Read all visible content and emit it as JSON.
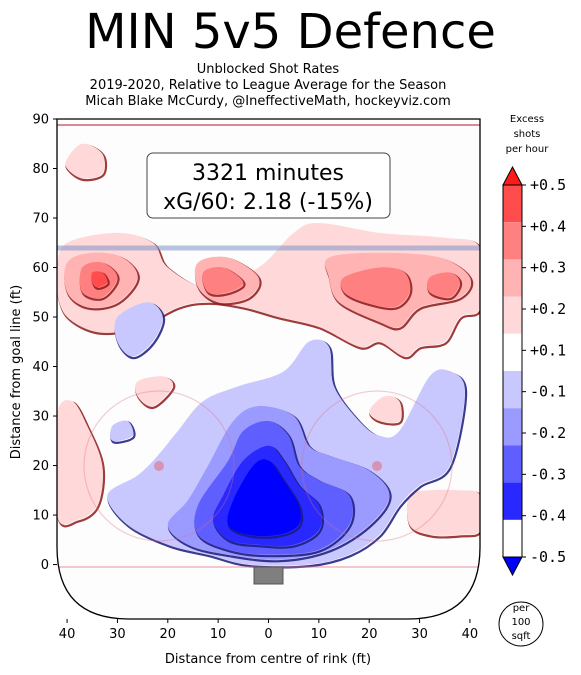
{
  "header": {
    "title": "MIN 5v5 Defence",
    "subtitle_lines": [
      "Unblocked Shot Rates",
      "2019-2020, Relative to League Average for the Season",
      "Micah Blake McCurdy, @IneffectiveMath, hockeyviz.com"
    ]
  },
  "info_box": {
    "line1": "3321 minutes",
    "line2": "xG/60: 2.18 (-15%)"
  },
  "colorbar": {
    "title_lines": [
      "Excess",
      "shots",
      "per hour"
    ],
    "tick_labels": [
      "+0.5",
      "+0.4",
      "+0.3",
      "+0.2",
      "+0.1",
      "-0.1",
      "-0.2",
      "-0.3",
      "-0.4",
      "-0.5"
    ],
    "band_colors": [
      "#ff1a1a",
      "#ff4d4d",
      "#ff8080",
      "#ffb3b3",
      "#ffd9d9",
      "#ffffff",
      "#c8c8ff",
      "#9b9bff",
      "#5f5fff",
      "#2828ff",
      "#0000ff"
    ],
    "units_lines": [
      "per",
      "100",
      "sqft"
    ]
  },
  "chart_data": {
    "type": "heatmap",
    "xlabel": "Distance from centre of rink (ft)",
    "ylabel": "Distance from goal line (ft)",
    "xlim": [
      -42,
      42
    ],
    "ylim": [
      -11,
      90
    ],
    "x_ticks": [
      -40,
      -30,
      -20,
      -10,
      0,
      10,
      20,
      30,
      40
    ],
    "x_tick_labels": [
      "40",
      "30",
      "20",
      "10",
      "0",
      "10",
      "20",
      "30",
      "40"
    ],
    "y_ticks": [
      0,
      10,
      20,
      30,
      40,
      50,
      60,
      70,
      80,
      90
    ],
    "y_tick_labels": [
      "0",
      "10",
      "20",
      "30",
      "40",
      "50",
      "60",
      "70",
      "80",
      "90"
    ],
    "value_range": [
      -0.5,
      0.5
    ],
    "regions": [
      {
        "sign": "excess",
        "level": 0.1,
        "polygons": [
          [
            [
              -42,
              60
            ],
            [
              -40,
              65
            ],
            [
              -30,
              67
            ],
            [
              -23,
              65
            ],
            [
              -20,
              60
            ],
            [
              -12,
              56
            ],
            [
              -2,
              60
            ],
            [
              5,
              67
            ],
            [
              10,
              69
            ],
            [
              22,
              67
            ],
            [
              35,
              66
            ],
            [
              42,
              64
            ],
            [
              42,
              52
            ],
            [
              38,
              50
            ],
            [
              35,
              45
            ],
            [
              30,
              44
            ],
            [
              27,
              42
            ],
            [
              22,
              45
            ],
            [
              18,
              44
            ],
            [
              10,
              48
            ],
            [
              2,
              50
            ],
            [
              -5,
              52
            ],
            [
              -12,
              53
            ],
            [
              -18,
              52
            ],
            [
              -26,
              48
            ],
            [
              -34,
              47
            ],
            [
              -40,
              50
            ],
            [
              -42,
              55
            ]
          ],
          [
            [
              -40,
              82
            ],
            [
              -37,
              85
            ],
            [
              -33,
              83
            ],
            [
              -33,
              79
            ],
            [
              -37,
              78
            ],
            [
              -40,
              80
            ]
          ],
          [
            [
              -42,
              30
            ],
            [
              -39,
              33
            ],
            [
              -36,
              28
            ],
            [
              -33,
              20
            ],
            [
              -34,
              12
            ],
            [
              -38,
              9
            ],
            [
              -42,
              10
            ]
          ],
          [
            [
              -26,
              37
            ],
            [
              -21,
              38
            ],
            [
              -19,
              36
            ],
            [
              -23,
              32
            ],
            [
              -26,
              34
            ]
          ],
          [
            [
              20,
              31
            ],
            [
              23,
              34
            ],
            [
              26,
              33
            ],
            [
              26,
              29
            ],
            [
              22,
              29
            ]
          ],
          [
            [
              28,
              14
            ],
            [
              32,
              15
            ],
            [
              38,
              15
            ],
            [
              42,
              14
            ],
            [
              42,
              7
            ],
            [
              38,
              6
            ],
            [
              32,
              6
            ],
            [
              28,
              8
            ]
          ]
        ]
      },
      {
        "sign": "excess",
        "level": 0.2,
        "polygons": [
          [
            [
              -40,
              61
            ],
            [
              -35,
              63
            ],
            [
              -29,
              62
            ],
            [
              -26,
              58
            ],
            [
              -30,
              53
            ],
            [
              -36,
              52
            ],
            [
              -40,
              55
            ]
          ],
          [
            [
              -14,
              61
            ],
            [
              -8,
              62
            ],
            [
              -2,
              58
            ],
            [
              -4,
              54
            ],
            [
              -10,
              53
            ],
            [
              -14,
              56
            ]
          ],
          [
            [
              12,
              62
            ],
            [
              22,
              63
            ],
            [
              34,
              62
            ],
            [
              40,
              58
            ],
            [
              38,
              54
            ],
            [
              30,
              52
            ],
            [
              26,
              48
            ],
            [
              22,
              49
            ],
            [
              14,
              53
            ],
            [
              12,
              58
            ]
          ]
        ]
      },
      {
        "sign": "excess",
        "level": 0.3,
        "polygons": [
          [
            [
              -37,
              60
            ],
            [
              -33,
              61
            ],
            [
              -30,
              58
            ],
            [
              -33,
              54
            ],
            [
              -37,
              55
            ]
          ],
          [
            [
              -13,
              59
            ],
            [
              -9,
              60
            ],
            [
              -5,
              57
            ],
            [
              -8,
              55
            ],
            [
              -12,
              55
            ]
          ],
          [
            [
              15,
              58
            ],
            [
              22,
              60
            ],
            [
              27,
              59
            ],
            [
              28,
              55
            ],
            [
              25,
              52
            ],
            [
              19,
              53
            ],
            [
              15,
              55
            ]
          ],
          [
            [
              32,
              58
            ],
            [
              36,
              59
            ],
            [
              38,
              57
            ],
            [
              36,
              54
            ],
            [
              32,
              55
            ]
          ]
        ]
      },
      {
        "sign": "excess",
        "level": 0.4,
        "polygons": [
          [
            [
              -35,
              59
            ],
            [
              -33,
              59
            ],
            [
              -32,
              57
            ],
            [
              -34,
              56
            ],
            [
              -35,
              57
            ]
          ]
        ]
      },
      {
        "sign": "deficit",
        "level": 0.1,
        "polygons": [
          [
            [
              -18,
              27
            ],
            [
              -13,
              33
            ],
            [
              -6,
              36
            ],
            [
              3,
              39
            ],
            [
              8,
              45
            ],
            [
              12,
              44
            ],
            [
              13,
              36
            ],
            [
              18,
              29
            ],
            [
              22,
              26
            ],
            [
              26,
              27
            ],
            [
              32,
              38
            ],
            [
              36,
              39
            ],
            [
              39,
              35
            ],
            [
              36,
              20
            ],
            [
              30,
              16
            ],
            [
              26,
              12
            ],
            [
              22,
              6
            ],
            [
              16,
              2
            ],
            [
              8,
              0
            ],
            [
              -4,
              0
            ],
            [
              -12,
              2
            ],
            [
              -20,
              4
            ],
            [
              -28,
              8
            ],
            [
              -32,
              14
            ],
            [
              -26,
              18
            ],
            [
              -22,
              22
            ]
          ],
          [
            [
              -30,
              50
            ],
            [
              -24,
              53
            ],
            [
              -21,
              50
            ],
            [
              -23,
              45
            ],
            [
              -27,
              42
            ],
            [
              -30,
              45
            ]
          ],
          [
            [
              -31,
              28
            ],
            [
              -28,
              29
            ],
            [
              -27,
              26
            ],
            [
              -31,
              25
            ]
          ]
        ]
      },
      {
        "sign": "deficit",
        "level": 0.2,
        "polygons": [
          [
            [
              -12,
              20
            ],
            [
              -7,
              29
            ],
            [
              -2,
              32
            ],
            [
              5,
              30
            ],
            [
              8,
              24
            ],
            [
              12,
              22
            ],
            [
              20,
              19
            ],
            [
              24,
              14
            ],
            [
              20,
              8
            ],
            [
              12,
              3
            ],
            [
              2,
              1
            ],
            [
              -8,
              2
            ],
            [
              -16,
              4
            ],
            [
              -20,
              8
            ],
            [
              -16,
              13
            ]
          ]
        ]
      },
      {
        "sign": "deficit",
        "level": 0.3,
        "polygons": [
          [
            [
              -8,
              21
            ],
            [
              -5,
              27
            ],
            [
              0,
              29
            ],
            [
              4,
              26
            ],
            [
              6,
              20
            ],
            [
              10,
              17
            ],
            [
              16,
              14
            ],
            [
              16,
              8
            ],
            [
              10,
              3
            ],
            [
              0,
              2
            ],
            [
              -8,
              3
            ],
            [
              -14,
              6
            ],
            [
              -14,
              12
            ]
          ]
        ]
      },
      {
        "sign": "deficit",
        "level": 0.4,
        "polygons": [
          [
            [
              -5,
              21
            ],
            [
              0,
              24
            ],
            [
              3,
              21
            ],
            [
              6,
              16
            ],
            [
              10,
              12
            ],
            [
              10,
              7
            ],
            [
              5,
              4
            ],
            [
              -2,
              4
            ],
            [
              -8,
              5
            ],
            [
              -11,
              9
            ],
            [
              -9,
              14
            ]
          ]
        ]
      },
      {
        "sign": "deficit",
        "level": 0.5,
        "polygons": [
          [
            [
              -3,
              20
            ],
            [
              0,
              21
            ],
            [
              3,
              17
            ],
            [
              6,
              12
            ],
            [
              6,
              8
            ],
            [
              2,
              6
            ],
            [
              -4,
              6
            ],
            [
              -8,
              8
            ],
            [
              -7,
              13
            ]
          ]
        ]
      }
    ]
  }
}
